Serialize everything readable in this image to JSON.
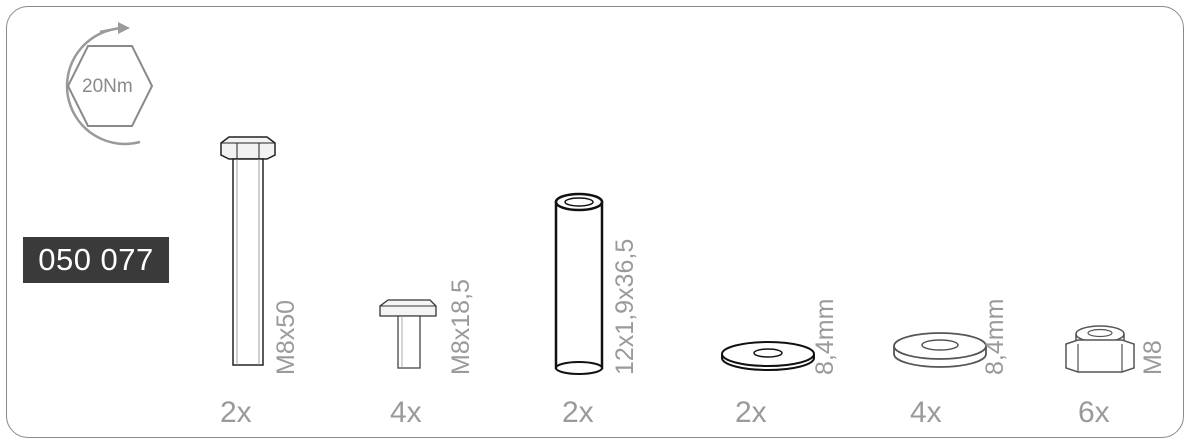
{
  "torque": {
    "label": "20Nm"
  },
  "part_number": "050 077",
  "parts": [
    {
      "name": "hex-bolt",
      "size": "M8x50",
      "quantity": "2x"
    },
    {
      "name": "t-bolt",
      "size": "M8x18,5",
      "quantity": "4x"
    },
    {
      "name": "spacer-tube",
      "size": "12x1,9x36,5",
      "quantity": "2x"
    },
    {
      "name": "thin-washer",
      "size": "8,4mm",
      "quantity": "2x"
    },
    {
      "name": "thick-washer",
      "size": "8,4mm",
      "quantity": "4x"
    },
    {
      "name": "lock-nut",
      "size": "M8",
      "quantity": "6x"
    }
  ]
}
